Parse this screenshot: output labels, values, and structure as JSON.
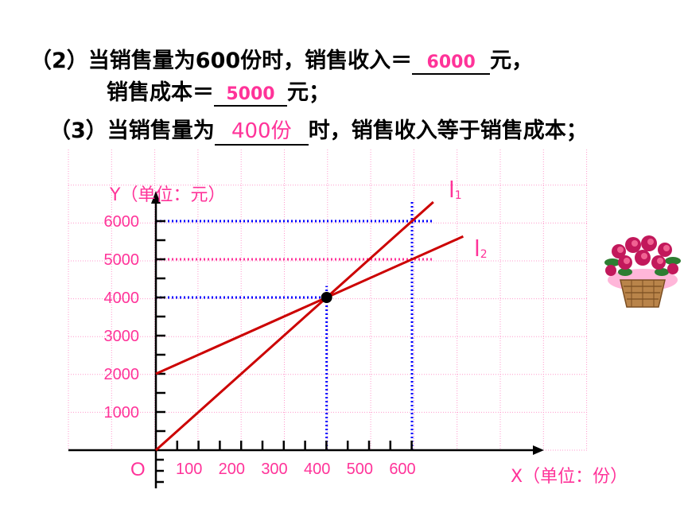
{
  "questions": {
    "q2_prefix": "（2）当销售量为600份时，销售收入＝",
    "q2_answer": "6000",
    "q2_suffix": "元，",
    "q2b_prefix": "销售成本＝",
    "q2b_answer": "5000",
    "q2b_suffix": "元；",
    "q3_prefix": "（3）当销售量为",
    "q3_answer": "400份",
    "q3_suffix": "时，销售收入等于销售成本；"
  },
  "colors": {
    "answer": "#ff3399",
    "line": "#cc0000",
    "guide_blue": "#0000ff",
    "guide_pink": "#ff3399",
    "grid": "#ff99cc",
    "tick_text": "#ff3399"
  },
  "chart_data": {
    "type": "line",
    "xlabel": "X（单位：份）",
    "ylabel": "Y（单位：元）",
    "origin_label": "O",
    "x_ticks": [
      "100",
      "200",
      "300",
      "400",
      "500",
      "600"
    ],
    "y_ticks": [
      "1000",
      "2000",
      "3000",
      "4000",
      "5000",
      "6000"
    ],
    "xlim": [
      0,
      900
    ],
    "ylim": [
      0,
      6500
    ],
    "series": [
      {
        "name": "l1",
        "label_main": "l",
        "label_sub": "1",
        "x": [
          0,
          650
        ],
        "y": [
          0,
          6500
        ]
      },
      {
        "name": "l2",
        "label_main": "l",
        "label_sub": "2",
        "x": [
          0,
          720
        ],
        "y": [
          2000,
          5600
        ]
      }
    ],
    "intersection": {
      "x": 400,
      "y": 4000
    },
    "guides": [
      {
        "from": [
          0,
          6000
        ],
        "to": [
          650,
          6000
        ],
        "color": "blue"
      },
      {
        "from": [
          0,
          5000
        ],
        "to": [
          650,
          5000
        ],
        "color": "pink"
      },
      {
        "from": [
          0,
          4000
        ],
        "to": [
          400,
          4000
        ],
        "color": "blue"
      },
      {
        "from": [
          400,
          0
        ],
        "to": [
          400,
          4300
        ],
        "color": "blue"
      },
      {
        "from": [
          600,
          0
        ],
        "to": [
          600,
          6500
        ],
        "color": "blue"
      }
    ]
  }
}
